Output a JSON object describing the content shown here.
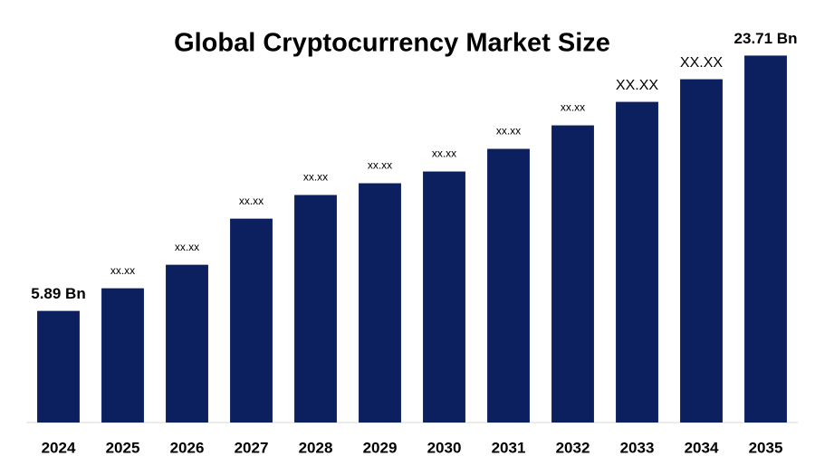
{
  "chart_data": {
    "type": "bar",
    "title": "Global Cryptocurrency Market Size",
    "categories": [
      "2024",
      "2025",
      "2026",
      "2027",
      "2028",
      "2029",
      "2030",
      "2031",
      "2032",
      "2033",
      "2034",
      "2035"
    ],
    "values": [
      5.89,
      7.47,
      9.11,
      12.33,
      13.98,
      14.8,
      15.62,
      17.2,
      18.84,
      20.48,
      22.06,
      23.71
    ],
    "value_labels": [
      "5.89 Bn",
      "xx.xx",
      "xx.xx",
      "xx.xx",
      "xx.xx",
      "xx.xx",
      "xx.xx",
      "xx.xx",
      "xx.xx",
      "XX.XX",
      "XX.XX",
      "23.71 Bn"
    ],
    "color": "#0c1f5e",
    "ylim": [
      -1.9,
      25
    ]
  }
}
